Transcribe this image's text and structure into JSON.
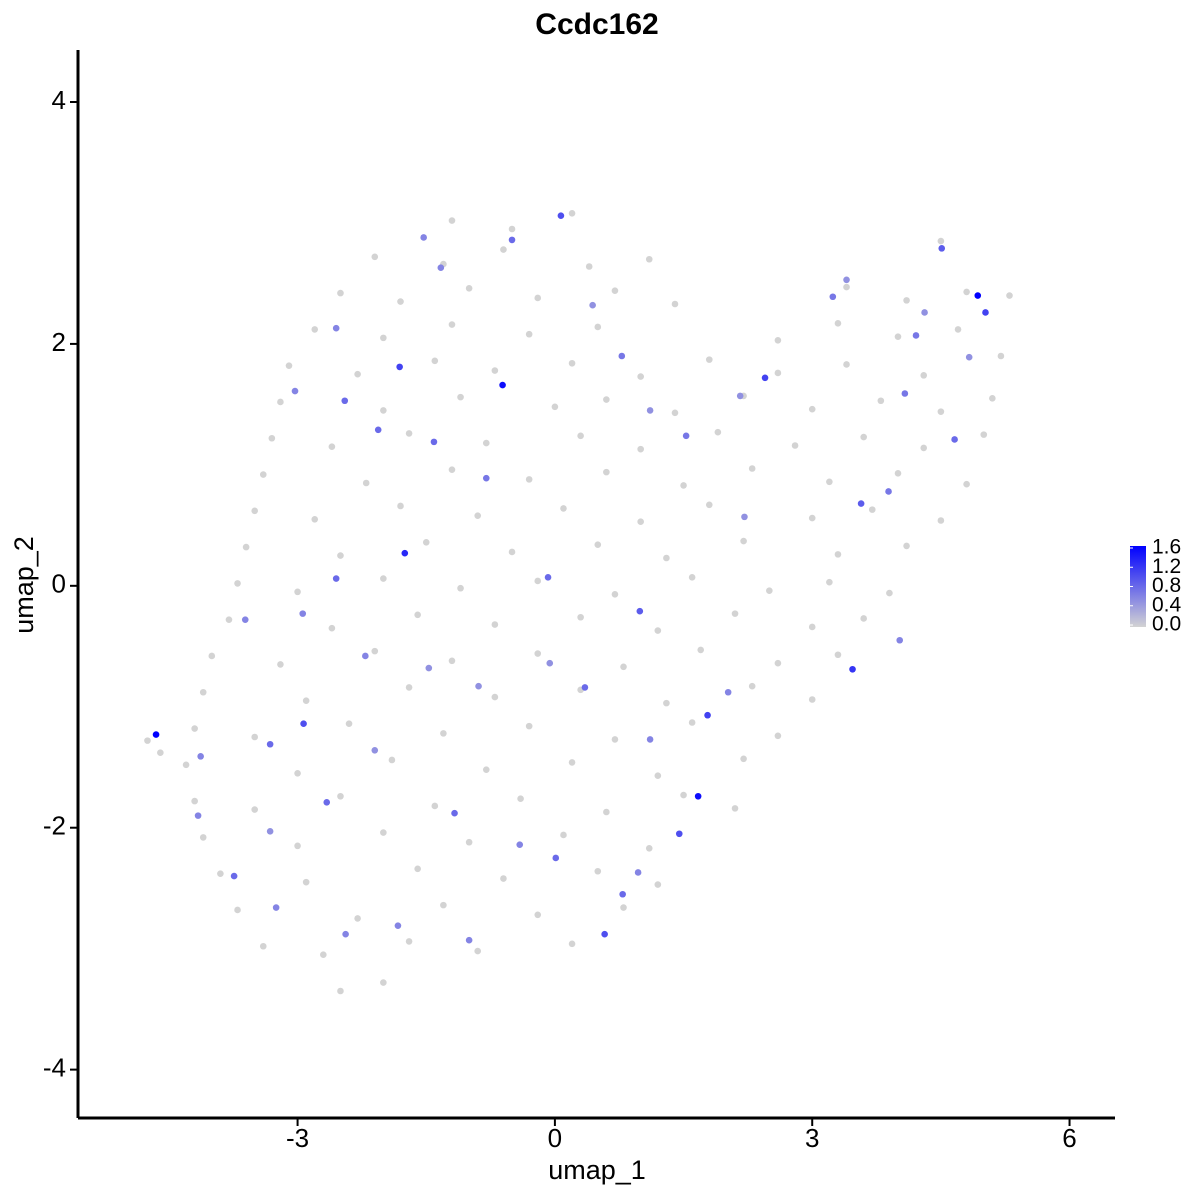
{
  "chart_data": {
    "type": "scatter",
    "title": "Ccdc162",
    "x_label": "umap_1",
    "y_label": "umap_2",
    "xlim": [
      -5.56,
      6.53
    ],
    "ylim": [
      -4.4,
      4.43
    ],
    "xticks": [
      -3,
      0,
      3,
      6
    ],
    "yticks": [
      -4,
      -2,
      0,
      2,
      4
    ],
    "grid": false,
    "colors": [
      "#d3d3d3",
      "#0000ff"
    ],
    "color_ticks": [
      {
        "value": 0,
        "label": "0.0"
      },
      0.4,
      0.8,
      1.2,
      1.6
    ],
    "x": [
      -1.2,
      -0.5,
      0.2,
      -2.1,
      -1.3,
      -0.6,
      0.4,
      1.1,
      4.5,
      -2.5,
      -1.8,
      -1.0,
      -0.2,
      0.7,
      1.4,
      3.4,
      4.1,
      4.8,
      -2.8,
      -2.0,
      -1.2,
      -0.3,
      0.5,
      2.6,
      3.3,
      4.0,
      4.7,
      5.3,
      -3.1,
      -2.3,
      -1.4,
      -0.7,
      0.2,
      1.0,
      1.8,
      2.6,
      3.4,
      4.3,
      5.2,
      -3.2,
      -2.0,
      -1.1,
      0.0,
      0.6,
      1.4,
      2.2,
      3.0,
      3.8,
      4.5,
      5.1,
      -3.3,
      -2.6,
      -1.7,
      -0.8,
      0.3,
      1.0,
      1.9,
      2.8,
      3.6,
      4.3,
      5.0,
      -3.4,
      -2.2,
      -1.2,
      -0.3,
      0.6,
      1.5,
      2.3,
      3.2,
      4.0,
      4.8,
      -3.5,
      -2.8,
      -1.8,
      -0.9,
      0.1,
      1.0,
      1.8,
      3.0,
      3.7,
      4.5,
      -3.6,
      -2.5,
      -1.5,
      -0.5,
      0.5,
      1.3,
      2.2,
      3.3,
      4.1,
      -3.7,
      -3.0,
      -2.0,
      -1.1,
      -0.2,
      0.7,
      1.6,
      2.5,
      3.2,
      3.9,
      -3.8,
      -2.6,
      -1.6,
      -0.7,
      0.3,
      1.2,
      2.1,
      3.0,
      3.6,
      -4.0,
      -3.2,
      -2.1,
      -1.2,
      -0.2,
      0.8,
      1.7,
      2.6,
      3.3,
      -4.1,
      -2.9,
      -1.7,
      -0.7,
      0.3,
      1.3,
      2.3,
      3.0,
      -4.2,
      -3.5,
      -2.4,
      -1.3,
      -0.3,
      0.7,
      1.6,
      2.6,
      -4.3,
      -3.0,
      -1.9,
      -0.8,
      0.2,
      1.2,
      2.2,
      -4.2,
      -3.5,
      -2.5,
      -1.4,
      -0.4,
      0.6,
      1.5,
      2.1,
      -4.1,
      -3.0,
      -2.0,
      -1.0,
      0.1,
      1.1,
      -3.9,
      -2.9,
      -1.6,
      -0.6,
      0.5,
      1.2,
      -3.7,
      -2.3,
      -1.3,
      -0.2,
      0.8,
      -3.4,
      -2.7,
      -1.7,
      -0.9,
      0.2,
      -2.5,
      -2.0,
      -4.75,
      -4.6,
      -4.65,
      -0.61,
      4.93,
      1.67,
      -1.75,
      3.47,
      5.02,
      2.45,
      1.78,
      -1.81,
      0.07,
      0.58,
      1.45,
      -2.93,
      4.51,
      3.57,
      4.66,
      0.99,
      -0.5,
      -2.45,
      -2.06,
      -2.55,
      -3.32,
      -2.66,
      -3.74,
      -1.17,
      0.01,
      0.79,
      0.35,
      -0.08,
      -1.41,
      -0.8,
      0.78,
      1.53,
      3.24,
      4.21,
      4.08,
      3.89,
      4.02,
      2.02,
      1.11,
      0.97,
      -0.41,
      -1.0,
      -1.83,
      -2.44,
      -3.25,
      -4.16,
      -4.13,
      -3.61,
      -2.94,
      -2.21,
      -3.03,
      -2.55,
      -1.33,
      -1.53,
      0.44,
      1.11,
      2.16,
      3.4,
      4.83,
      4.31,
      2.21,
      -0.06,
      -0.89,
      -1.47,
      -2.1,
      -3.32
    ],
    "series": [
      {
        "name": "Ccdc162",
        "values": [
          3.02,
          2.95,
          3.08,
          2.72,
          2.66,
          2.78,
          2.64,
          2.7,
          2.85,
          2.42,
          2.35,
          2.46,
          2.38,
          2.44,
          2.33,
          2.47,
          2.36,
          2.43,
          2.12,
          2.05,
          2.16,
          2.08,
          2.14,
          2.03,
          2.17,
          2.06,
          2.12,
          2.4,
          1.82,
          1.75,
          1.86,
          1.78,
          1.84,
          1.73,
          1.87,
          1.76,
          1.83,
          1.74,
          1.9,
          1.52,
          1.45,
          1.56,
          1.48,
          1.54,
          1.43,
          1.57,
          1.46,
          1.53,
          1.44,
          1.55,
          1.22,
          1.15,
          1.26,
          1.18,
          1.24,
          1.13,
          1.27,
          1.16,
          1.23,
          1.14,
          1.25,
          0.92,
          0.85,
          0.96,
          0.88,
          0.94,
          0.83,
          0.97,
          0.86,
          0.93,
          0.84,
          0.62,
          0.55,
          0.66,
          0.58,
          0.64,
          0.53,
          0.67,
          0.56,
          0.63,
          0.54,
          0.32,
          0.25,
          0.36,
          0.28,
          0.34,
          0.23,
          0.37,
          0.26,
          0.33,
          0.02,
          -0.05,
          0.06,
          -0.02,
          0.04,
          -0.07,
          0.07,
          -0.04,
          0.03,
          -0.06,
          -0.28,
          -0.35,
          -0.24,
          -0.32,
          -0.26,
          -0.37,
          -0.23,
          -0.34,
          -0.27,
          -0.58,
          -0.65,
          -0.54,
          -0.62,
          -0.56,
          -0.67,
          -0.53,
          -0.64,
          -0.57,
          -0.88,
          -0.95,
          -0.84,
          -0.92,
          -0.86,
          -0.97,
          -0.83,
          -0.94,
          -1.18,
          -1.25,
          -1.14,
          -1.22,
          -1.16,
          -1.27,
          -1.13,
          -1.24,
          -1.48,
          -1.55,
          -1.44,
          -1.52,
          -1.46,
          -1.57,
          -1.43,
          -1.78,
          -1.85,
          -1.74,
          -1.82,
          -1.76,
          -1.87,
          -1.73,
          -1.84,
          -2.08,
          -2.15,
          -2.04,
          -2.12,
          -2.06,
          -2.17,
          -2.38,
          -2.45,
          -2.34,
          -2.42,
          -2.36,
          -2.47,
          -2.68,
          -2.75,
          -2.64,
          -2.72,
          -2.66,
          -2.98,
          -3.05,
          -2.94,
          -3.02,
          -2.96,
          -3.35,
          -3.28,
          -1.28,
          -1.38,
          -1.23,
          1.66,
          2.4,
          -1.74,
          0.27,
          -0.69,
          2.26,
          1.72,
          -1.07,
          1.81,
          3.06,
          -2.88,
          -2.05,
          -1.14,
          2.79,
          0.68,
          1.21,
          -0.21,
          2.86,
          1.53,
          1.29,
          0.06,
          -1.31,
          -1.79,
          -2.4,
          -1.88,
          -2.25,
          -2.55,
          -0.84,
          0.07,
          1.19,
          0.89,
          1.9,
          1.24,
          2.39,
          2.07,
          1.59,
          0.78,
          -0.45,
          -0.88,
          -1.27,
          -2.37,
          -2.14,
          -2.93,
          -2.81,
          -2.88,
          -2.66,
          -1.9,
          -1.41,
          -0.28,
          -0.23,
          -0.58,
          1.61,
          2.13,
          2.63,
          2.88,
          2.32,
          1.45,
          1.57,
          2.53,
          1.89,
          2.26,
          0.57,
          -0.64,
          -0.83,
          -0.68,
          -1.36,
          -2.03
        ],
        "expression": [
          0,
          0,
          0,
          0,
          0,
          0,
          0,
          0,
          0,
          0,
          0,
          0,
          0,
          0,
          0,
          0,
          0,
          0,
          0,
          0,
          0,
          0,
          0,
          0,
          0,
          0,
          0,
          0,
          0,
          0,
          0,
          0,
          0,
          0,
          0,
          0,
          0,
          0,
          0,
          0,
          0,
          0,
          0,
          0,
          0,
          0,
          0,
          0,
          0,
          0,
          0,
          0,
          0,
          0,
          0,
          0,
          0,
          0,
          0,
          0,
          0,
          0,
          0,
          0,
          0,
          0,
          0,
          0,
          0,
          0,
          0,
          0,
          0,
          0,
          0,
          0,
          0,
          0,
          0,
          0,
          0,
          0,
          0,
          0,
          0,
          0,
          0,
          0,
          0,
          0,
          0,
          0,
          0,
          0,
          0,
          0,
          0,
          0,
          0,
          0,
          0,
          0,
          0,
          0,
          0,
          0,
          0,
          0,
          0,
          0,
          0,
          0,
          0,
          0,
          0,
          0,
          0,
          0,
          0,
          0,
          0,
          0,
          0,
          0,
          0,
          0,
          0,
          0,
          0,
          0,
          0,
          0,
          0,
          0,
          0,
          0,
          0,
          0,
          0,
          0,
          0,
          0,
          0,
          0,
          0,
          0,
          0,
          0,
          0,
          0,
          0,
          0,
          0,
          0,
          0,
          0,
          0,
          0,
          0,
          0,
          0,
          0,
          0,
          0,
          0,
          0,
          0,
          0,
          0,
          0,
          0,
          0,
          0,
          0,
          0,
          1.6,
          1.5,
          1.6,
          1.5,
          1.3,
          1.2,
          1.1,
          1.1,
          1.1,
          1.1,
          1.0,
          1.0,
          1.0,
          1.0,
          0.9,
          0.9,
          0.8,
          0.9,
          0.8,
          0.8,
          0.8,
          0.8,
          0.8,
          0.8,
          0.8,
          0.8,
          0.8,
          0.8,
          0.8,
          0.8,
          0.8,
          0.7,
          0.7,
          0.7,
          0.7,
          0.7,
          0.7,
          0.7,
          0.6,
          0.6,
          0.6,
          0.6,
          0.6,
          0.6,
          0.6,
          0.6,
          0.6,
          0.6,
          0.6,
          0.6,
          0.6,
          0.6,
          0.6,
          0.6,
          0.6,
          0.6,
          0.5,
          0.5,
          0.5,
          0.5,
          0.5,
          0.5,
          0.5,
          0.5,
          0.5,
          0.5,
          0.5,
          0.5
        ]
      }
    ]
  }
}
